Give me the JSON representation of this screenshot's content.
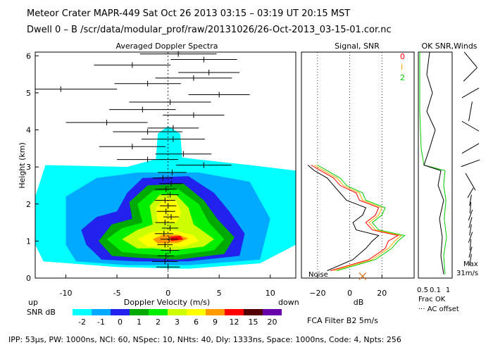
{
  "header": {
    "line1": "Meteor Crater  MAPR-449  Sat Oct 26 2013 03:15 – 03:19 UT 20:15 MST",
    "line2": "Dwell  0 –  B   /scr/data/modular_prof/raw/20131026/26-Oct-2013_03-15-01.cor.nc"
  },
  "footer": "IPP: 53μs,  PW: 1000ns,  NCI: 60,  NSpec: 10, NHts: 40,  Dly: 1333ns,  Space: 1000ns,  Code: 4,  Npts: 256",
  "chart_data": [
    {
      "id": "doppler",
      "type": "heatmap",
      "title": "Averaged Doppler Spectra",
      "xlabel": "Doppler Velocity (m/s)",
      "ylabel": "Height (km)",
      "xlim": [
        -13,
        12.5
      ],
      "ylim": [
        0,
        6.1
      ],
      "xticks": [
        -10,
        -5,
        0,
        5,
        10
      ],
      "yticks": [
        0,
        1,
        2,
        3,
        4,
        5,
        6
      ],
      "left_label": "up",
      "right_label": "down",
      "colorbar": {
        "label": "SNR dB",
        "tick_labels": [
          "-2",
          "-1",
          "0",
          "1",
          "2",
          "3",
          "6",
          "9",
          "12",
          "15",
          "20"
        ],
        "colors": [
          "#00ffff",
          "#00aaff",
          "#2222ee",
          "#00aa00",
          "#00ee00",
          "#ccff00",
          "#ffff00",
          "#ff9900",
          "#ff0000",
          "#550000",
          "#6600aa"
        ]
      },
      "spectral_bars": [
        {
          "h": 0.3,
          "c": 0.0,
          "w": 2.3
        },
        {
          "h": 0.45,
          "c": -0.3,
          "w": 2.5
        },
        {
          "h": 0.6,
          "c": -0.2,
          "w": 1.6
        },
        {
          "h": 0.75,
          "c": 0.2,
          "w": 1.8
        },
        {
          "h": 0.9,
          "c": -0.3,
          "w": 1.5
        },
        {
          "h": 1.05,
          "c": 0.1,
          "w": 1.7
        },
        {
          "h": 1.2,
          "c": -0.4,
          "w": 1.8
        },
        {
          "h": 1.35,
          "c": 0.2,
          "w": 1.6
        },
        {
          "h": 1.5,
          "c": -0.3,
          "w": 1.9
        },
        {
          "h": 1.65,
          "c": 0.3,
          "w": 1.5
        },
        {
          "h": 1.8,
          "c": -0.2,
          "w": 1.8
        },
        {
          "h": 1.95,
          "c": 0.0,
          "w": 1.6
        },
        {
          "h": 2.1,
          "c": -0.3,
          "w": 2.0
        },
        {
          "h": 2.25,
          "c": 0.2,
          "w": 1.7
        },
        {
          "h": 2.4,
          "c": -0.2,
          "w": 2.1
        },
        {
          "h": 2.55,
          "c": 0.3,
          "w": 2.3
        },
        {
          "h": 2.7,
          "c": -0.5,
          "w": 2.0
        },
        {
          "h": 2.85,
          "c": 0.4,
          "w": 2.8
        },
        {
          "h": 3.05,
          "c": 3.5,
          "w": 5.4
        },
        {
          "h": 3.2,
          "c": -2.0,
          "w": 6.0
        },
        {
          "h": 3.35,
          "c": 1.5,
          "w": 5.5
        },
        {
          "h": 3.55,
          "c": -3.5,
          "w": 6.5
        },
        {
          "h": 3.75,
          "c": 0.5,
          "w": 6.2
        },
        {
          "h": 3.95,
          "c": -2.0,
          "w": 6.8
        },
        {
          "h": 4.05,
          "c": 0.5,
          "w": 5.0
        },
        {
          "h": 4.2,
          "c": -6.0,
          "w": 8.0
        },
        {
          "h": 4.4,
          "c": 2.5,
          "w": 6.0
        },
        {
          "h": 4.55,
          "c": -2.5,
          "w": 6.5
        },
        {
          "h": 4.75,
          "c": 0.2,
          "w": 8.0
        },
        {
          "h": 4.95,
          "c": 5.0,
          "w": 6.0
        },
        {
          "h": 5.1,
          "c": -10.5,
          "w": 11.0
        },
        {
          "h": 5.25,
          "c": -2.0,
          "w": 6.5
        },
        {
          "h": 5.4,
          "c": 2.5,
          "w": 7.5
        },
        {
          "h": 5.55,
          "c": 4.0,
          "w": 6.0
        },
        {
          "h": 5.75,
          "c": -3.5,
          "w": 7.5
        },
        {
          "h": 5.9,
          "c": 3.5,
          "w": 6.5
        },
        {
          "h": 6.05,
          "c": 1.0,
          "w": 7.5
        }
      ]
    },
    {
      "id": "snr",
      "type": "line",
      "title": "Signal, SNR",
      "xlabel": "dB",
      "xlim": [
        -30,
        40
      ],
      "ylim": [
        0,
        6.1
      ],
      "xticks": [
        -20,
        0,
        20,
        40
      ],
      "xtick_labels": [
        "−20",
        "0",
        "20"
      ],
      "noise_label": "Noise",
      "legend": [
        "0",
        "I",
        "2"
      ],
      "series": [
        {
          "name": "0",
          "color": "#ff0000",
          "y": [
            0.2,
            0.5,
            0.8,
            1.0,
            1.15,
            1.3,
            1.5,
            1.7,
            1.9,
            2.1,
            2.3,
            2.5,
            2.7,
            2.9,
            3.05
          ],
          "x": [
            -12,
            12,
            22,
            24,
            30,
            14,
            10,
            16,
            18,
            6,
            4,
            -6,
            -10,
            -18,
            -24
          ]
        },
        {
          "name": "I",
          "color": "#ffaa00",
          "y": [
            0.2,
            0.5,
            0.8,
            1.0,
            1.15,
            1.3,
            1.5,
            1.7,
            1.9,
            2.1,
            2.3,
            2.5,
            2.7,
            2.9,
            3.05
          ],
          "x": [
            -10,
            14,
            24,
            28,
            32,
            16,
            12,
            18,
            20,
            8,
            6,
            -4,
            -8,
            -16,
            -22
          ]
        },
        {
          "name": "2",
          "color": "#00cc00",
          "y": [
            0.2,
            0.5,
            0.8,
            1.0,
            1.15,
            1.3,
            1.5,
            1.7,
            1.9,
            2.1,
            2.3,
            2.5,
            2.7,
            2.9,
            3.05
          ],
          "x": [
            -8,
            16,
            26,
            30,
            34,
            18,
            14,
            20,
            22,
            10,
            8,
            -2,
            -6,
            -14,
            -20
          ]
        },
        {
          "name": "signal",
          "color": "#000000",
          "y": [
            0.2,
            0.5,
            0.8,
            1.0,
            1.15,
            1.3,
            1.5,
            1.7,
            1.9,
            2.1,
            2.3,
            2.5,
            2.7,
            2.9,
            3.05
          ],
          "x": [
            -14,
            2,
            10,
            14,
            18,
            4,
            2,
            8,
            10,
            -2,
            -6,
            -10,
            -14,
            -22,
            -26
          ]
        }
      ]
    },
    {
      "id": "okwinds",
      "type": "line",
      "title": "OK SNR,Winds",
      "xlim": [
        0,
        1.2
      ],
      "ylim": [
        0,
        6.1
      ],
      "xtick_labels": [
        "0.5",
        "0.1",
        "1"
      ],
      "bottom_lines": [
        "Frac OK",
        "··· AC offset"
      ],
      "max_label": [
        "Max",
        "31m/s"
      ],
      "series": [
        {
          "name": "frac_ok",
          "color": "#00cc00",
          "y": [
            0.1,
            0.6,
            1.1,
            1.6,
            2.1,
            2.5,
            2.9,
            3.05,
            3.5,
            4.5,
            5.5,
            6.1
          ],
          "x": [
            0.95,
            0.9,
            1.0,
            0.92,
            0.98,
            0.9,
            0.95,
            0.2,
            0.1,
            0.05,
            0.05,
            0.05
          ]
        },
        {
          "name": "ac_offset",
          "color": "#000000",
          "y": [
            0.1,
            0.6,
            1.1,
            1.6,
            2.1,
            2.5,
            2.9,
            3.05,
            3.5,
            4.0,
            4.5,
            5.0,
            5.5,
            6.1
          ],
          "x": [
            0.9,
            0.8,
            0.85,
            0.75,
            0.9,
            0.7,
            0.8,
            0.2,
            0.4,
            0.6,
            0.3,
            0.5,
            0.3,
            0.4
          ]
        }
      ]
    }
  ],
  "bottom_right": "FCA Filter B2  5m/s"
}
